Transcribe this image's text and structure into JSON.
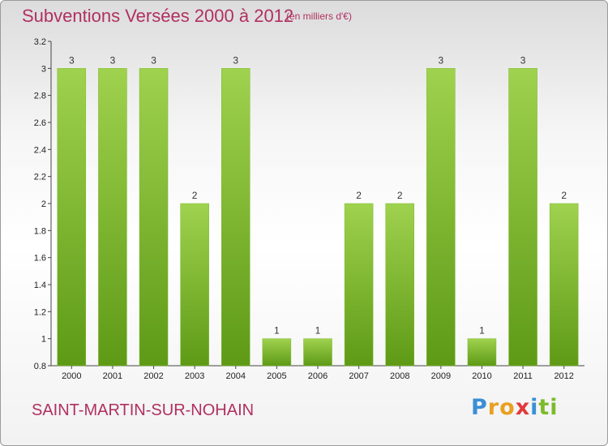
{
  "header": {
    "title": "Subventions Versées 2000 à 2012",
    "subtitle": "(en milliers d'€)"
  },
  "footer": {
    "commune": "SAINT-MARTIN-SUR-NOHAIN",
    "logo_letters": [
      "P",
      "r",
      "o",
      "x",
      "i",
      "t",
      "i"
    ],
    "logo_colors": [
      "#3a8fd6",
      "#e8a020",
      "#e8a020",
      "#e03a3a",
      "#3a8fd6",
      "#7cbb2c",
      "#7cbb2c"
    ]
  },
  "colors": {
    "bar_top": "#9fd24e",
    "bar_bottom": "#5e9a16",
    "text_accent": "#b03060"
  },
  "chart_data": {
    "type": "bar",
    "categories": [
      "2000",
      "2001",
      "2002",
      "2003",
      "2004",
      "2005",
      "2006",
      "2007",
      "2008",
      "2009",
      "2010",
      "2011",
      "2012"
    ],
    "values": [
      3,
      3,
      3,
      2,
      3,
      1,
      1,
      2,
      2,
      3,
      1,
      3,
      2
    ],
    "value_labels": [
      "3",
      "3",
      "3",
      "2",
      "3",
      "1",
      "1",
      "2",
      "2",
      "3",
      "1",
      "3",
      "2"
    ],
    "yticks": [
      "0.8",
      "1",
      "1.2",
      "1.4",
      "1.6",
      "1.8",
      "2",
      "2.2",
      "2.4",
      "2.6",
      "2.8",
      "3",
      "3.2"
    ],
    "ylim": [
      0.8,
      3.2
    ],
    "title": "Subventions Versées 2000 à 2012",
    "xlabel": "",
    "ylabel": "",
    "grid": false,
    "legend": "none"
  }
}
